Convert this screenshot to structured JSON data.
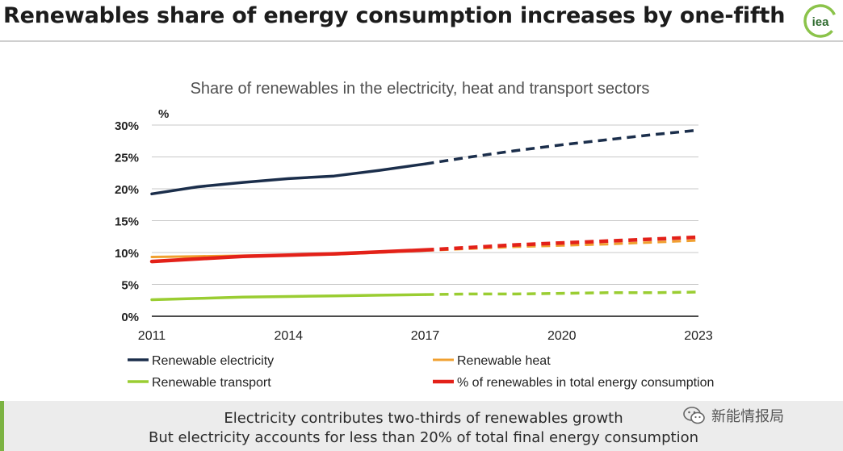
{
  "slide_title": "Renewables share of energy consumption increases by one-fifth",
  "logo_text": "iea",
  "chart_data": {
    "type": "line",
    "title": "Share of renewables in the electricity, heat and transport sectors",
    "y_unit_label": "%",
    "ylim": [
      0,
      30
    ],
    "xlim": [
      2011,
      2023
    ],
    "y_ticks": [
      "0%",
      "5%",
      "10%",
      "15%",
      "20%",
      "25%",
      "30%"
    ],
    "x_ticks": [
      "2011",
      "2014",
      "2017",
      "2020",
      "2023"
    ],
    "grid": true,
    "legend_position": "bottom",
    "colors": {
      "electricity": "#1b2e4b",
      "heat": "#f0a030",
      "transport": "#9acd32",
      "total": "#e32119",
      "grid": "#c8c8c8",
      "axis": "#111111"
    },
    "series": [
      {
        "name": "Renewable electricity",
        "key": "electricity",
        "width": 3.5,
        "historical": [
          [
            2011,
            19.2
          ],
          [
            2012,
            20.3
          ],
          [
            2013,
            21.0
          ],
          [
            2014,
            21.6
          ],
          [
            2015,
            22.0
          ],
          [
            2016,
            22.9
          ],
          [
            2017,
            23.9
          ]
        ],
        "forecast": [
          [
            2017,
            23.9
          ],
          [
            2018,
            25.0
          ],
          [
            2019,
            26.0
          ],
          [
            2020,
            26.9
          ],
          [
            2021,
            27.7
          ],
          [
            2022,
            28.5
          ],
          [
            2023,
            29.2
          ]
        ]
      },
      {
        "name": "Renewable heat",
        "key": "heat",
        "width": 3,
        "historical": [
          [
            2011,
            9.3
          ],
          [
            2012,
            9.4
          ],
          [
            2013,
            9.5
          ],
          [
            2014,
            9.6
          ],
          [
            2015,
            9.7
          ],
          [
            2016,
            10.0
          ],
          [
            2017,
            10.3
          ]
        ],
        "forecast": [
          [
            2017,
            10.3
          ],
          [
            2018,
            10.6
          ],
          [
            2019,
            10.9
          ],
          [
            2020,
            11.1
          ],
          [
            2021,
            11.3
          ],
          [
            2022,
            11.6
          ],
          [
            2023,
            11.9
          ]
        ]
      },
      {
        "name": "Renewable transport",
        "key": "transport",
        "width": 3.5,
        "historical": [
          [
            2011,
            2.6
          ],
          [
            2012,
            2.8
          ],
          [
            2013,
            3.0
          ],
          [
            2014,
            3.1
          ],
          [
            2015,
            3.2
          ],
          [
            2016,
            3.3
          ],
          [
            2017,
            3.4
          ]
        ],
        "forecast": [
          [
            2017,
            3.4
          ],
          [
            2018,
            3.5
          ],
          [
            2019,
            3.5
          ],
          [
            2020,
            3.6
          ],
          [
            2021,
            3.7
          ],
          [
            2022,
            3.7
          ],
          [
            2023,
            3.8
          ]
        ]
      },
      {
        "name": "% of renewables in total energy consumption",
        "key": "total",
        "width": 4.5,
        "historical": [
          [
            2011,
            8.6
          ],
          [
            2012,
            9.0
          ],
          [
            2013,
            9.4
          ],
          [
            2014,
            9.6
          ],
          [
            2015,
            9.8
          ],
          [
            2016,
            10.1
          ],
          [
            2017,
            10.4
          ]
        ],
        "forecast": [
          [
            2017,
            10.4
          ],
          [
            2018,
            10.8
          ],
          [
            2019,
            11.2
          ],
          [
            2020,
            11.5
          ],
          [
            2021,
            11.8
          ],
          [
            2022,
            12.1
          ],
          [
            2023,
            12.4
          ]
        ]
      }
    ]
  },
  "footer": {
    "line1": "Electricity contributes two-thirds of renewables growth",
    "line2": "But electricity accounts for less than 20% of total final energy consumption"
  },
  "watermark": {
    "icon": "wechat-icon",
    "text": "新能情报局"
  }
}
